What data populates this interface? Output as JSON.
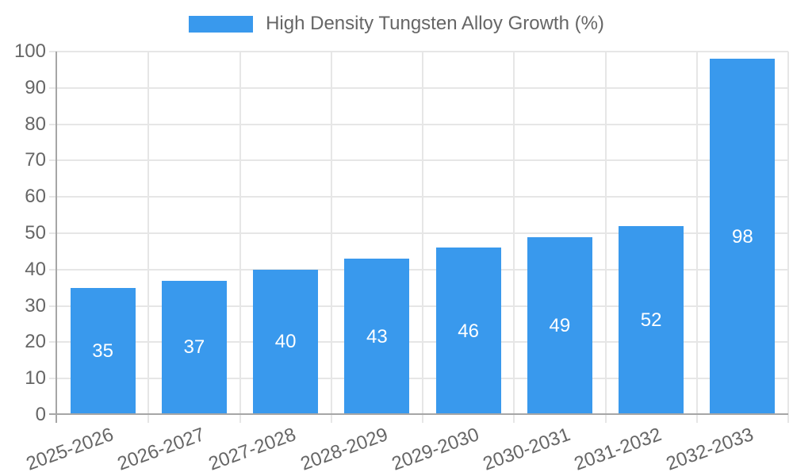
{
  "chart_data": {
    "type": "bar",
    "title": "High Density Tungsten Alloy Growth (%)",
    "legend_label": "High Density Tungsten Alloy Growth (%)",
    "legend_position": "top",
    "categories": [
      "2025-2026",
      "2026-2027",
      "2027-2028",
      "2028-2029",
      "2029-2030",
      "2030-2031",
      "2031-2032",
      "2032-2033"
    ],
    "values": [
      35,
      37,
      40,
      43,
      46,
      49,
      52,
      98
    ],
    "xlabel": "",
    "ylabel": "",
    "ylim": [
      0,
      100
    ],
    "ytick_step": 10,
    "ytick_labels": [
      "0",
      "10",
      "20",
      "30",
      "40",
      "50",
      "60",
      "70",
      "80",
      "90",
      "100"
    ],
    "grid": true,
    "bar_value_labels": [
      "35",
      "37",
      "40",
      "43",
      "46",
      "49",
      "52",
      "98"
    ],
    "colors": {
      "bar": "#3999ED",
      "grid": "#E6E6E6",
      "axis": "#A6A6A6",
      "tick_text": "#666666",
      "value_label": "#FFFFFF",
      "background": "#FFFFFF"
    }
  }
}
